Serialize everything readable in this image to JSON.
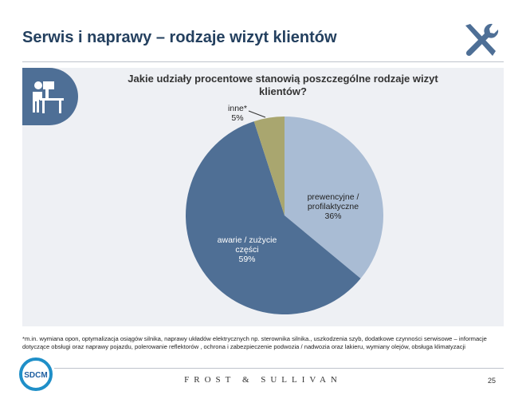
{
  "header": {
    "title": "Serwis i naprawy – rodzaje wizyt klientów",
    "icon": "tools-icon"
  },
  "footnote": "*m.in. wymiana opon, optymalizacja osiągów  silnika, naprawy układów elektrycznych np. sterownika silnika., uszkodzenia szyb, dodatkowe czynności serwisowe – informacje dotyczące obsługi oraz naprawy pojazdu, polerowanie reflektorów , ochrona i zabezpieczenie podwozia / nadwozia oraz lakieru, wymiany olejów, obsługa klimatyzacji",
  "footer": {
    "logo": "SDCM",
    "brand": "FROST & SULLIVAN",
    "page": "25"
  },
  "chart_data": {
    "type": "pie",
    "title": "Jakie udziały procentowe stanowią poszczególne rodzaje wizyt klientów?",
    "slices": [
      {
        "label": "prewencyjne / profilaktyczne",
        "value": 36,
        "display": "36%",
        "color": "#a9bcd4"
      },
      {
        "label": "awarie / zużycie części",
        "value": 59,
        "display": "59%",
        "color": "#4f6f95"
      },
      {
        "label": "inne*",
        "value": 5,
        "display": "5%",
        "color": "#a9a66f"
      }
    ],
    "start": "top",
    "direction": "clockwise",
    "legend": "none"
  }
}
